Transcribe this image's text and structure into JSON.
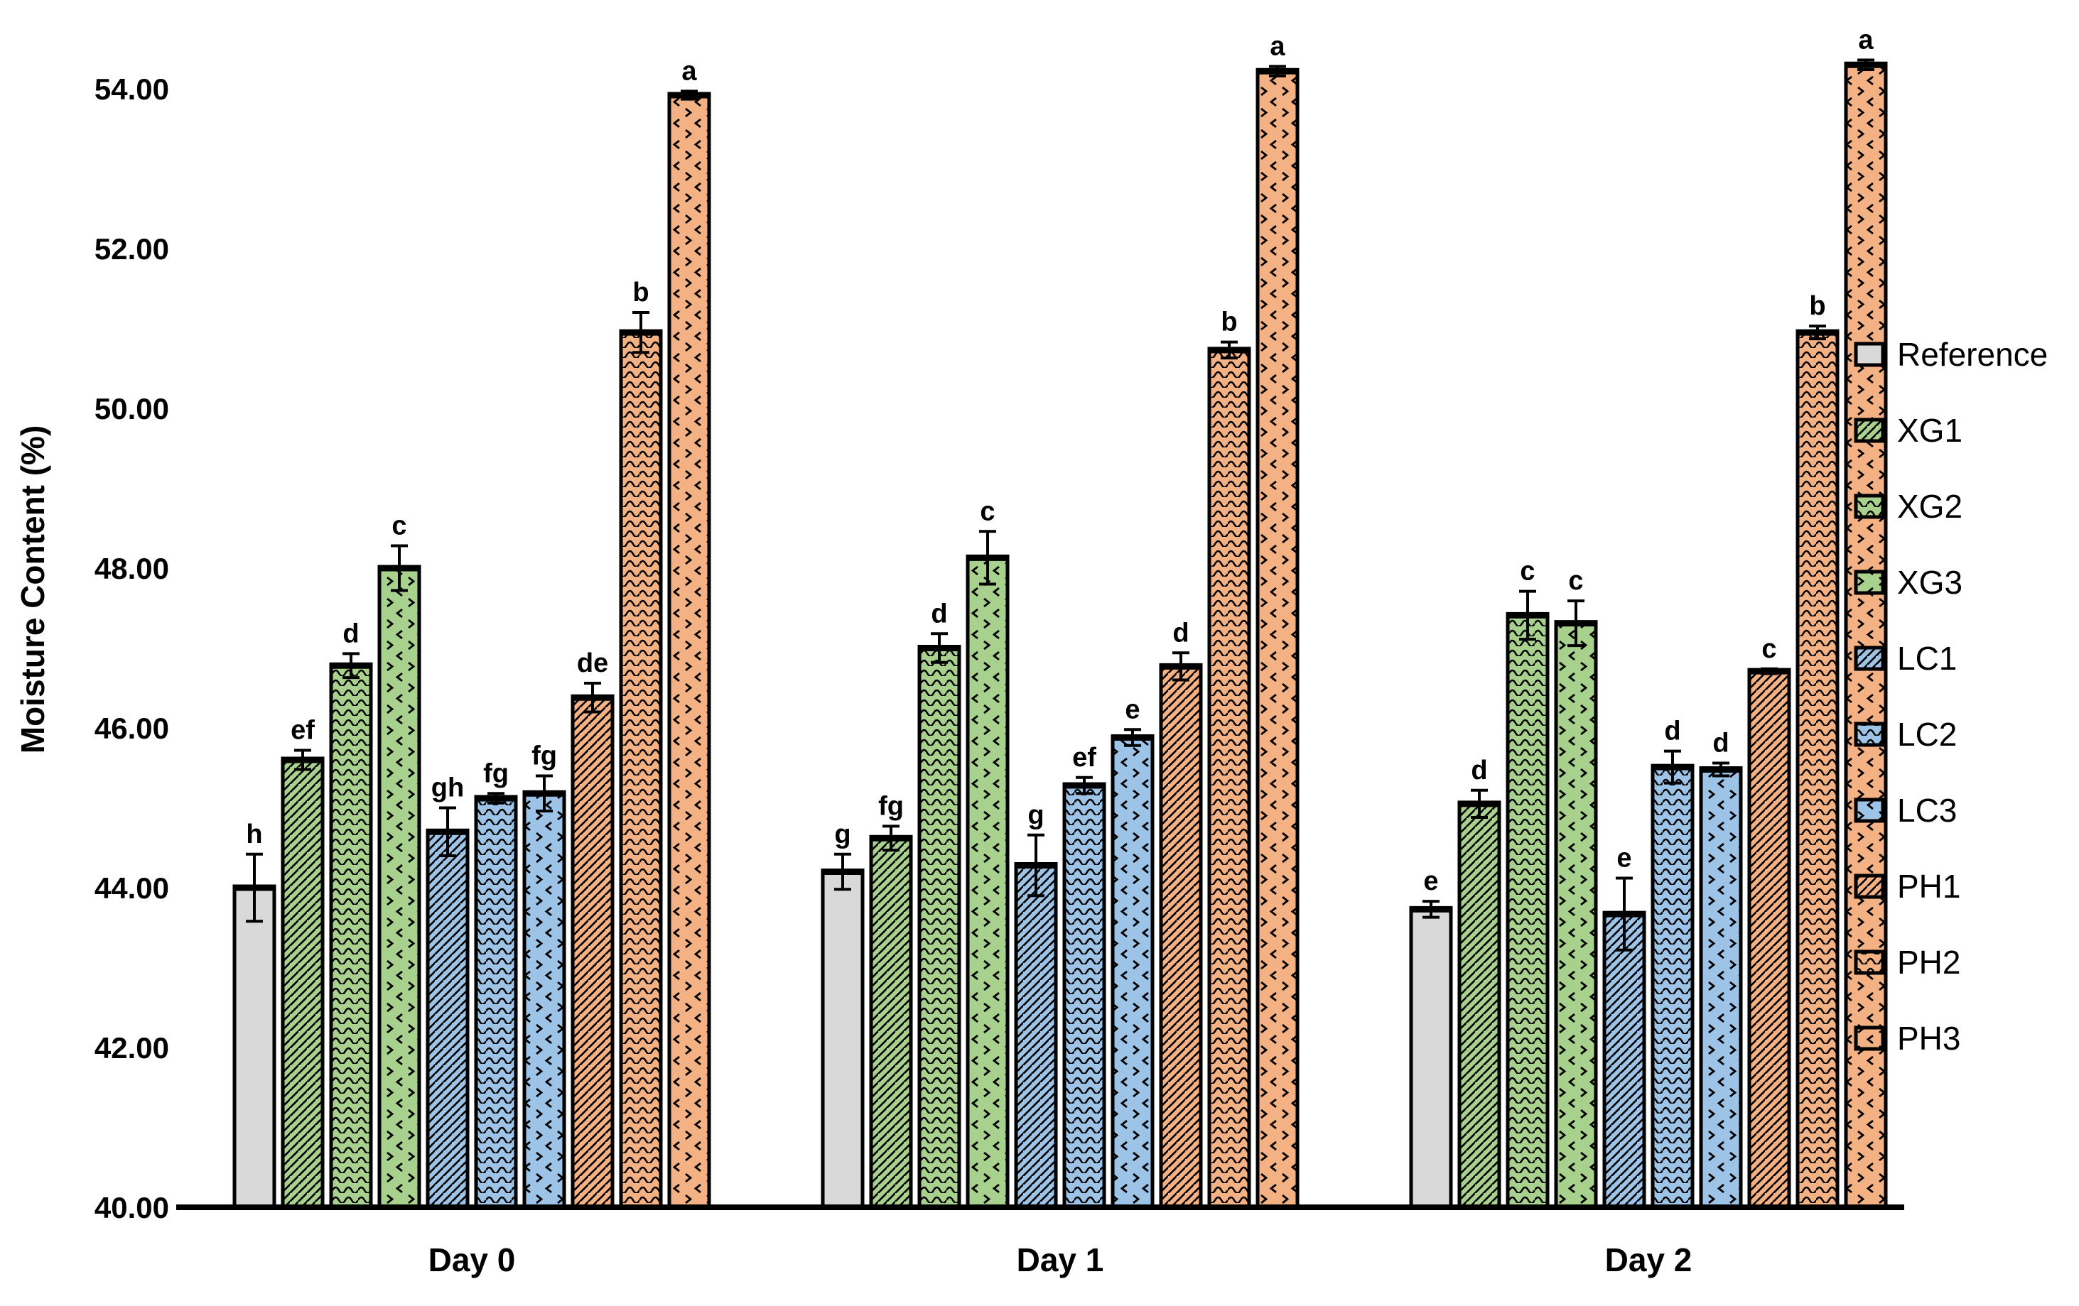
{
  "chart_data": {
    "type": "bar",
    "title": "",
    "xlabel": "",
    "ylabel": "Moisture Content (%)",
    "ylim": [
      40.0,
      54.8
    ],
    "yticks": [
      40,
      42,
      44,
      46,
      48,
      50,
      52,
      54
    ],
    "tick_decimals": 2,
    "grid": false,
    "legend_position": "right",
    "categories": [
      "Day 0",
      "Day 1",
      "Day 2"
    ],
    "series": [
      {
        "name": "Reference",
        "color": "#d9d9d9",
        "pattern": "plain",
        "values": [
          44.0,
          44.2,
          43.73
        ],
        "errors": [
          0.42,
          0.22,
          0.1
        ],
        "letters": [
          "h",
          "g",
          "e"
        ]
      },
      {
        "name": "XG1",
        "color": "#a9d18e",
        "pattern": "diagonal",
        "values": [
          45.6,
          44.62,
          45.05
        ],
        "errors": [
          0.12,
          0.15,
          0.17
        ],
        "letters": [
          "ef",
          "fg",
          "d"
        ]
      },
      {
        "name": "XG2",
        "color": "#a9d18e",
        "pattern": "wave",
        "values": [
          46.78,
          47.0,
          47.41
        ],
        "errors": [
          0.15,
          0.18,
          0.3
        ],
        "letters": [
          "d",
          "d",
          "c"
        ]
      },
      {
        "name": "XG3",
        "color": "#a9d18e",
        "pattern": "divot",
        "values": [
          48.0,
          48.13,
          47.31
        ],
        "errors": [
          0.28,
          0.33,
          0.28
        ],
        "letters": [
          "c",
          "c",
          "c"
        ]
      },
      {
        "name": "LC1",
        "color": "#9dc3e6",
        "pattern": "diagonal",
        "values": [
          44.7,
          44.28,
          43.67
        ],
        "errors": [
          0.3,
          0.38,
          0.45
        ],
        "letters": [
          "gh",
          "g",
          "e"
        ]
      },
      {
        "name": "LC2",
        "color": "#9dc3e6",
        "pattern": "wave",
        "values": [
          45.12,
          45.28,
          45.51
        ],
        "errors": [
          0.06,
          0.1,
          0.2
        ],
        "letters": [
          "fg",
          "ef",
          "d"
        ]
      },
      {
        "name": "LC3",
        "color": "#9dc3e6",
        "pattern": "divot",
        "values": [
          45.18,
          45.88,
          45.48
        ],
        "errors": [
          0.22,
          0.1,
          0.08
        ],
        "letters": [
          "fg",
          "e",
          "d"
        ]
      },
      {
        "name": "PH1",
        "color": "#f4b183",
        "pattern": "diagonal",
        "values": [
          46.38,
          46.77,
          46.71
        ],
        "errors": [
          0.18,
          0.17,
          0.03
        ],
        "letters": [
          "de",
          "d",
          "c"
        ]
      },
      {
        "name": "PH2",
        "color": "#f4b183",
        "pattern": "wave",
        "values": [
          50.95,
          50.73,
          50.95
        ],
        "errors": [
          0.25,
          0.1,
          0.08
        ],
        "letters": [
          "b",
          "b",
          "b"
        ]
      },
      {
        "name": "PH3",
        "color": "#f4b183",
        "pattern": "divot",
        "values": [
          53.92,
          54.22,
          54.3
        ],
        "errors": [
          0.05,
          0.06,
          0.06
        ],
        "letters": [
          "a",
          "a",
          "a"
        ]
      }
    ],
    "colors": {
      "axis": "#000000",
      "bar_border": "#000000",
      "error_bar": "#000000",
      "text": "#000000"
    }
  }
}
